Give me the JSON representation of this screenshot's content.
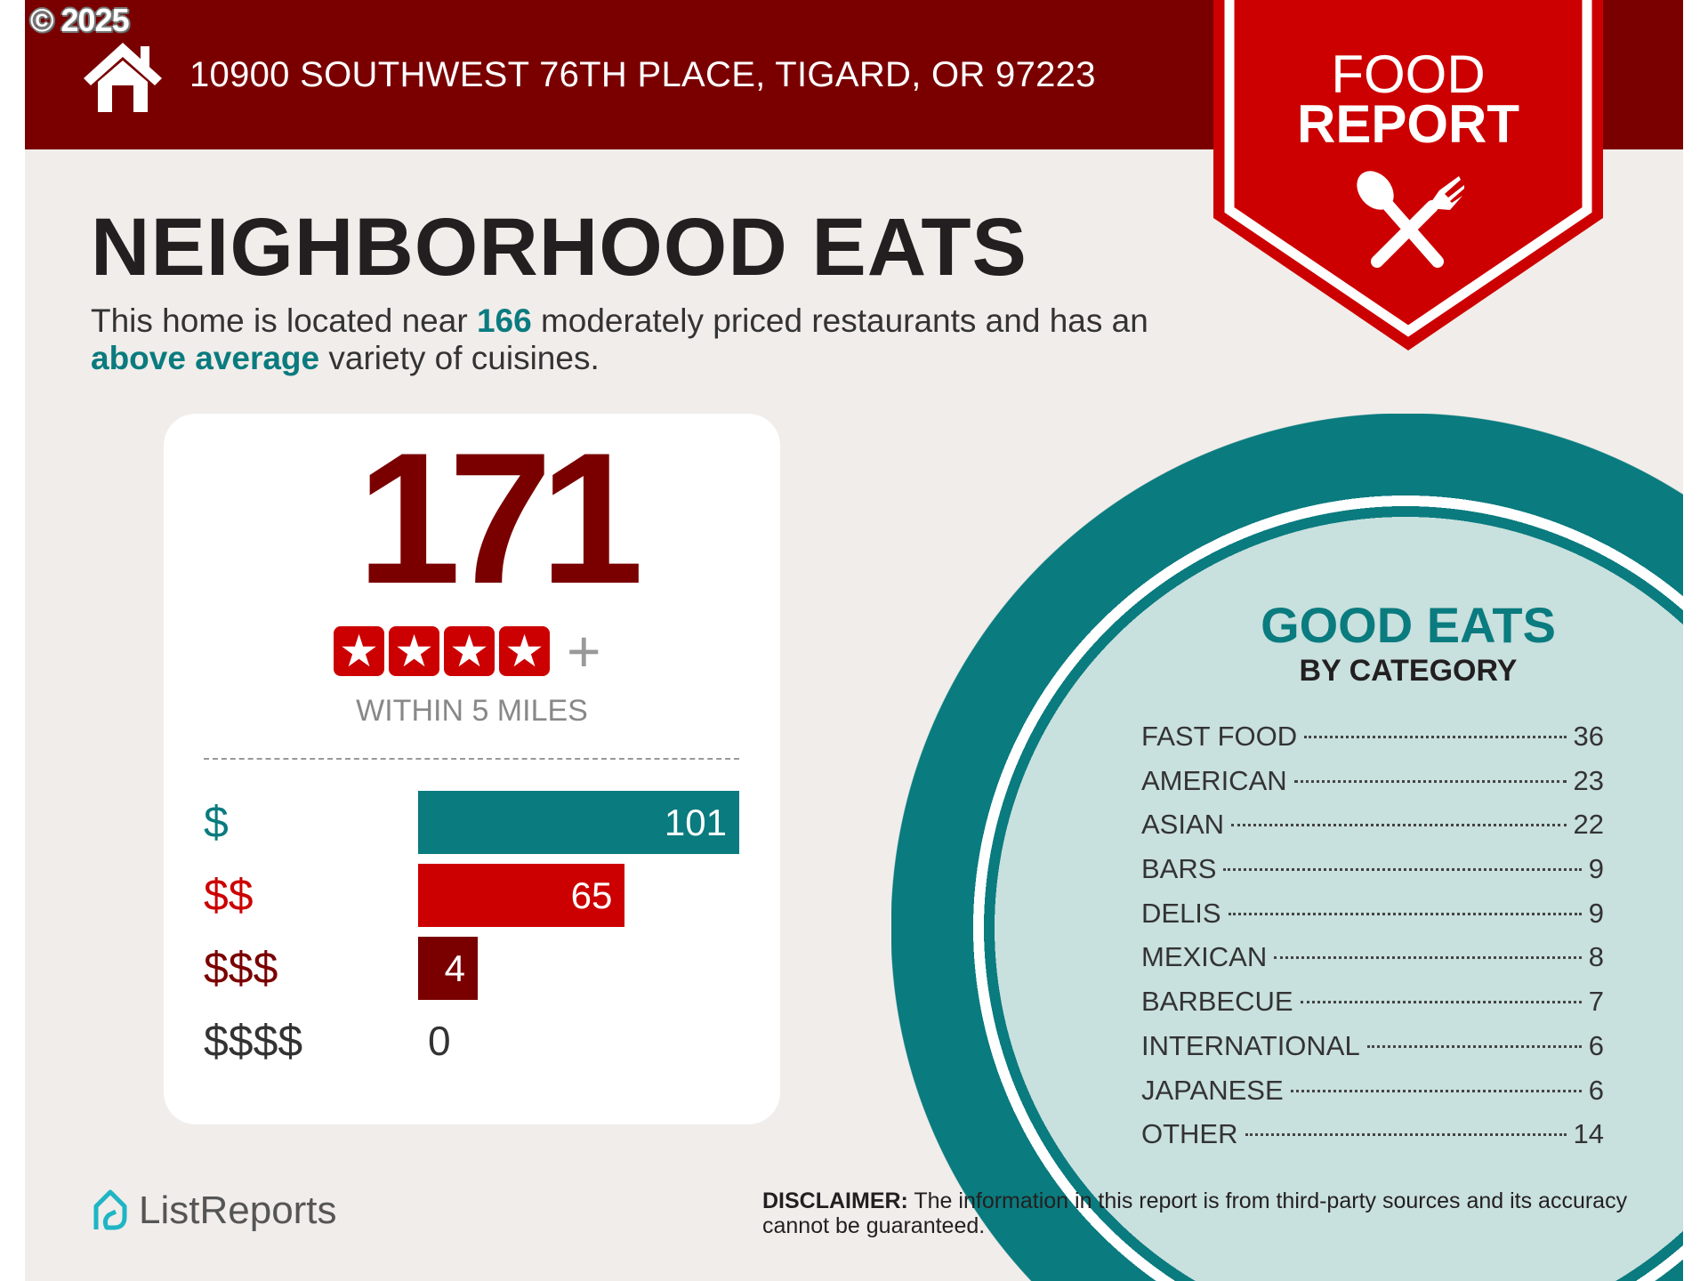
{
  "copyright": "© 2025",
  "header": {
    "address": "10900 SOUTHWEST 76TH PLACE, TIGARD, OR 97223",
    "icon": "house-icon"
  },
  "badge": {
    "line1": "FOOD",
    "line2": "REPORT",
    "icon": "spoon-fork-icon"
  },
  "colors": {
    "header": "#7a0000",
    "badge": "#cc0000",
    "teal": "#0a7b7f",
    "circle_fill": "#c8e0de",
    "background": "#f1edea"
  },
  "main": {
    "title": "NEIGHBORHOOD EATS",
    "desc": {
      "p1": "This home is located near ",
      "count": "166",
      "p2": " moderately priced restaurants and has an ",
      "variety": "above average",
      "p3": " variety of cuisines."
    }
  },
  "summary": {
    "count": "171",
    "stars": 4,
    "star_glyph": "★",
    "plus": "+",
    "within": "WITHIN 5 MILES"
  },
  "price_breakdown": [
    {
      "label": "$",
      "value": 101,
      "value_text": "101",
      "color": "#0a7b7f"
    },
    {
      "label": "$$",
      "value": 65,
      "value_text": "65",
      "color": "#cc0000"
    },
    {
      "label": "$$$",
      "value": 4,
      "value_text": "4",
      "color": "#7a0000"
    },
    {
      "label": "$$$$",
      "value": 0,
      "value_text": "0",
      "color": "#333333"
    }
  ],
  "good_eats": {
    "title": "GOOD EATS",
    "subtitle": "BY CATEGORY",
    "categories": [
      {
        "name": "FAST FOOD",
        "count": "36"
      },
      {
        "name": "AMERICAN",
        "count": "23"
      },
      {
        "name": "ASIAN",
        "count": "22"
      },
      {
        "name": "BARS",
        "count": "9"
      },
      {
        "name": "DELIS",
        "count": "9"
      },
      {
        "name": "MEXICAN",
        "count": "8"
      },
      {
        "name": "BARBECUE",
        "count": "7"
      },
      {
        "name": "INTERNATIONAL",
        "count": "6"
      },
      {
        "name": "JAPANESE",
        "count": "6"
      },
      {
        "name": "OTHER",
        "count": "14"
      }
    ]
  },
  "footer": {
    "logo": "ListReports",
    "disclaimer_label": "DISCLAIMER:",
    "disclaimer_text": " The information in this report is from third-party sources and its accuracy cannot be guaranteed."
  }
}
